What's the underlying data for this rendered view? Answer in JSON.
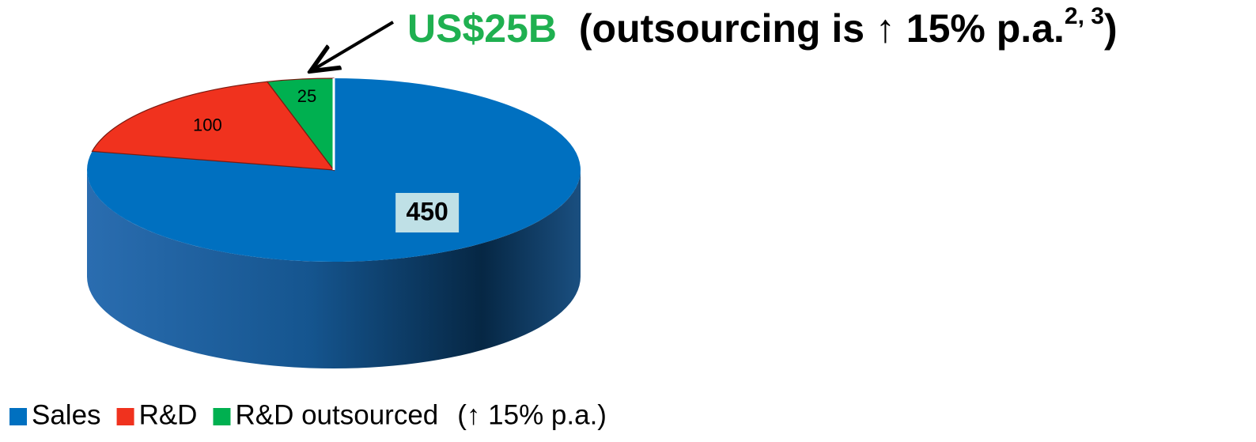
{
  "chart_data": {
    "type": "pie",
    "categories": [
      "Sales",
      "R&D",
      "R&D outsourced"
    ],
    "values": [
      450,
      100,
      25
    ],
    "colors": [
      "#0070c0",
      "#f0321e",
      "#00b050"
    ],
    "annotation": {
      "highlight": "US$25B",
      "text": "(outsourcing is ↑ 15% p.a.",
      "superscript": "2, 3",
      "close": ")"
    },
    "legend_note": "(↑ 15% p.a.)",
    "legend": "bottom-left"
  }
}
